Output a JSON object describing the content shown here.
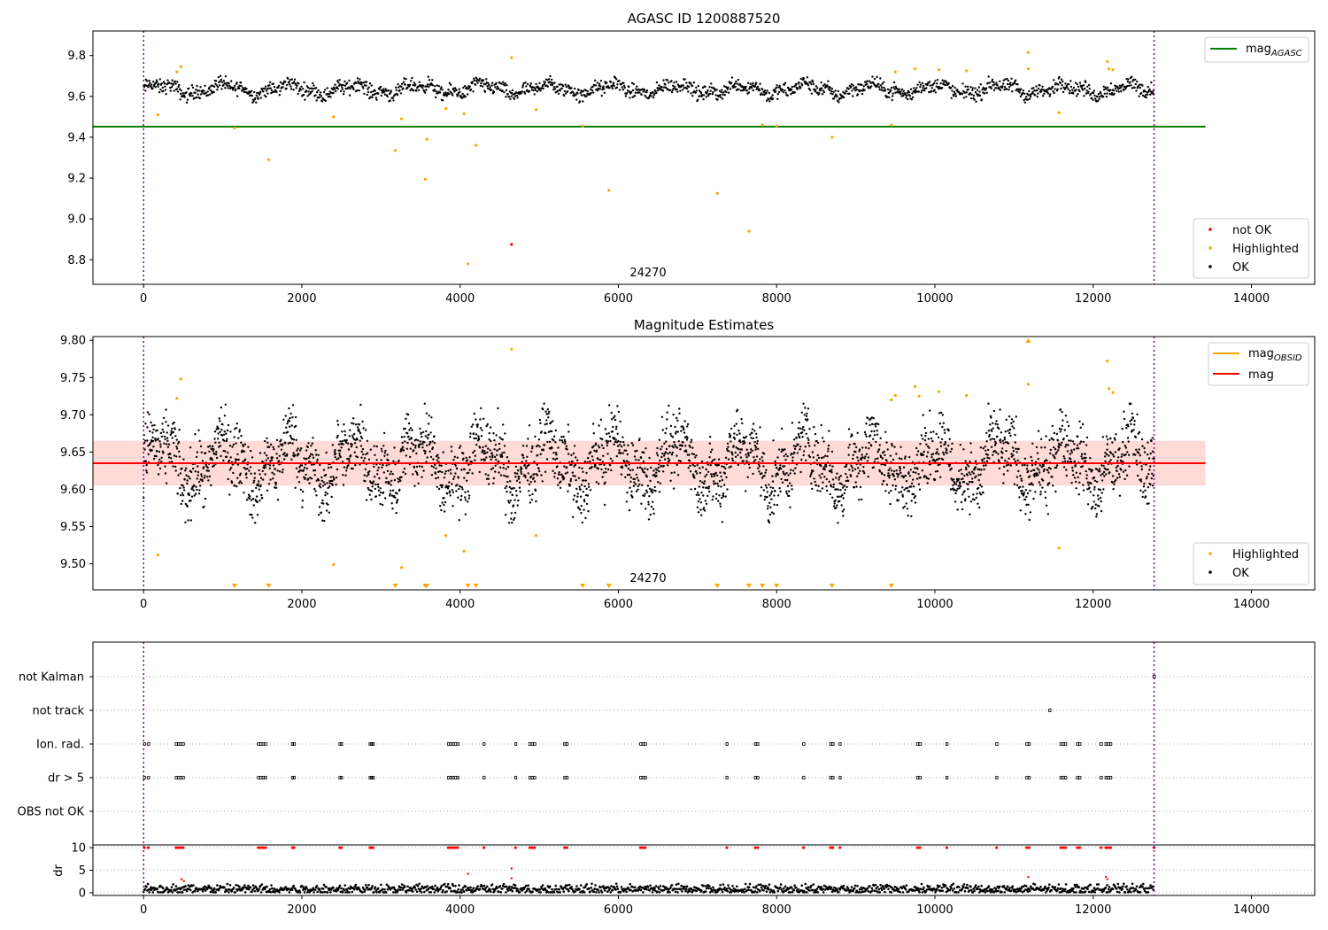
{
  "chart_data": [
    {
      "type": "scatter",
      "title": "AGASC ID 1200887520",
      "xlim": [
        -640,
        14800
      ],
      "ylim": [
        8.68,
        9.92
      ],
      "xticks": [
        0,
        2000,
        4000,
        6000,
        8000,
        10000,
        12000,
        14000
      ],
      "yticks": [
        8.8,
        9.0,
        9.2,
        9.4,
        9.6,
        9.8
      ],
      "annotation": "24270",
      "annotation_x": 6400,
      "vlines": [
        0,
        12770
      ],
      "hline": {
        "name": "mag_AGASC",
        "value": 9.452,
        "x_range": [
          -640,
          13420
        ],
        "color": "#008000"
      },
      "ok_band": {
        "x_range": [
          0,
          12770
        ],
        "center": 9.635,
        "min": 9.57,
        "max": 9.71,
        "color": "#000000"
      },
      "series": [
        {
          "name": "not OK",
          "color": "#ff0000",
          "points": [
            [
              4650,
              8.875
            ]
          ]
        },
        {
          "name": "Highlighted",
          "color": "#ffa500",
          "points": [
            [
              180,
              9.51
            ],
            [
              420,
              9.72
            ],
            [
              470,
              9.745
            ],
            [
              1150,
              9.445
            ],
            [
              1580,
              9.29
            ],
            [
              2400,
              9.5
            ],
            [
              3180,
              9.335
            ],
            [
              3260,
              9.49
            ],
            [
              3560,
              9.195
            ],
            [
              3580,
              9.39
            ],
            [
              3820,
              9.54
            ],
            [
              4050,
              9.515
            ],
            [
              4100,
              8.78
            ],
            [
              4200,
              9.36
            ],
            [
              4650,
              9.79
            ],
            [
              4960,
              9.535
            ],
            [
              5550,
              9.455
            ],
            [
              5880,
              9.14
            ],
            [
              7250,
              9.125
            ],
            [
              7650,
              8.94
            ],
            [
              7820,
              9.46
            ],
            [
              8000,
              9.455
            ],
            [
              8700,
              9.4
            ],
            [
              9450,
              9.46
            ],
            [
              9500,
              9.72
            ],
            [
              9750,
              9.735
            ],
            [
              10050,
              9.73
            ],
            [
              10400,
              9.725
            ],
            [
              11180,
              9.815
            ],
            [
              11180,
              9.735
            ],
            [
              11570,
              9.52
            ],
            [
              12180,
              9.77
            ],
            [
              12200,
              9.735
            ],
            [
              12250,
              9.73
            ]
          ]
        },
        {
          "name": "OK",
          "color": "#000000",
          "points": []
        }
      ],
      "legend_lines": [
        "mag_AGASC"
      ],
      "legend_points": [
        "not OK",
        "Highlighted",
        "OK"
      ]
    },
    {
      "type": "scatter",
      "title": "Magnitude Estimates",
      "xlim": [
        -640,
        14800
      ],
      "ylim": [
        9.465,
        9.805
      ],
      "xticks": [
        0,
        2000,
        4000,
        6000,
        8000,
        10000,
        12000,
        14000
      ],
      "yticks": [
        9.5,
        9.55,
        9.6,
        9.65,
        9.7,
        9.75,
        9.8
      ],
      "ytick_labels": [
        "9.50",
        "9.55",
        "9.60",
        "9.65",
        "9.70",
        "9.75",
        "9.80"
      ],
      "annotation": "24270",
      "annotation_x": 6400,
      "vlines": [
        0,
        12770
      ],
      "mag_line": {
        "name": "mag",
        "value": 9.635,
        "color": "#ff0000"
      },
      "mag_band": {
        "min": 9.605,
        "max": 9.665,
        "x_range": [
          -640,
          13420
        ]
      },
      "ok_band": {
        "x_range": [
          0,
          12770
        ],
        "center": 9.635,
        "min": 9.555,
        "max": 9.715,
        "color": "#000000"
      },
      "series": [
        {
          "name": "Highlighted",
          "color": "#ffa500",
          "points": [
            [
              180,
              9.512
            ],
            [
              420,
              9.722
            ],
            [
              470,
              9.748
            ],
            [
              2400,
              9.499
            ],
            [
              3260,
              9.495
            ],
            [
              3820,
              9.538
            ],
            [
              4050,
              9.517
            ],
            [
              4650,
              9.788
            ],
            [
              4960,
              9.538
            ],
            [
              9450,
              9.72
            ],
            [
              9500,
              9.726
            ],
            [
              9750,
              9.738
            ],
            [
              9800,
              9.725
            ],
            [
              10050,
              9.731
            ],
            [
              10400,
              9.726
            ],
            [
              11180,
              9.741
            ],
            [
              11570,
              9.521
            ],
            [
              12180,
              9.772
            ],
            [
              12200,
              9.735
            ],
            [
              12250,
              9.73
            ]
          ]
        },
        {
          "name": "OK",
          "color": "#000000",
          "points": []
        }
      ],
      "below_range_markers": [
        1150,
        1580,
        3180,
        3560,
        3580,
        4100,
        4200,
        5550,
        5880,
        7250,
        7650,
        7820,
        8000,
        8700,
        9450
      ],
      "above_range_markers": [
        11180
      ],
      "legend_lines": [
        "mag_OBSID",
        "mag"
      ],
      "legend_points": [
        "Highlighted",
        "OK"
      ]
    },
    {
      "type": "scatter",
      "title": "",
      "xlim": [
        -640,
        14800
      ],
      "ylabel": "dr",
      "xticks": [
        0,
        2000,
        4000,
        6000,
        8000,
        10000,
        12000,
        14000
      ],
      "categories": [
        "not Kalman",
        "not track",
        "Ion. rad.",
        "dr > 5",
        "OBS not OK"
      ],
      "vlines": [
        0,
        12770
      ],
      "flag_events": {
        "not Kalman": [
          12770
        ],
        "not track": [
          11450
        ],
        "Ion. rad.": [
          10,
          60,
          410,
          440,
          470,
          500,
          1450,
          1480,
          1510,
          1540,
          1880,
          1900,
          2480,
          2500,
          2860,
          2880,
          2900,
          3850,
          3880,
          3910,
          3940,
          3970,
          4300,
          4700,
          4880,
          4910,
          4940,
          5320,
          5350,
          6280,
          6310,
          6340,
          7370,
          7730,
          7760,
          8340,
          8680,
          8710,
          8800,
          9780,
          9810,
          10150,
          10780,
          11160,
          11190,
          11590,
          11620,
          11650,
          11800,
          11830,
          12100,
          12160,
          12190,
          12220
        ],
        "dr > 5": [
          10,
          60,
          410,
          440,
          470,
          500,
          1450,
          1480,
          1510,
          1540,
          1880,
          1900,
          2480,
          2500,
          2860,
          2880,
          2900,
          3850,
          3880,
          3910,
          3940,
          3970,
          4300,
          4700,
          4880,
          4910,
          4940,
          5320,
          5350,
          6280,
          6310,
          6340,
          7370,
          7730,
          7760,
          8340,
          8680,
          8710,
          8800,
          9780,
          9810,
          10150,
          10780,
          11160,
          11190,
          11590,
          11620,
          11650,
          11800,
          11830,
          12100,
          12160,
          12190,
          12220
        ],
        "OBS not OK": []
      },
      "dr": {
        "ylim": [
          -0.6,
          10.6
        ],
        "yticks": [
          0,
          5,
          10
        ],
        "ok_band": {
          "x_range": [
            0,
            12770
          ],
          "center": 0.8,
          "min": 0.1,
          "max": 2.0
        },
        "clipped_at_10": [
          10,
          60,
          410,
          440,
          470,
          500,
          1450,
          1480,
          1510,
          1540,
          1880,
          1900,
          2480,
          2500,
          2860,
          2880,
          2900,
          3850,
          3880,
          3910,
          3940,
          3970,
          4300,
          4700,
          4880,
          4910,
          4940,
          5320,
          5350,
          6280,
          6310,
          6340,
          7370,
          7730,
          7760,
          8340,
          8680,
          8710,
          8800,
          9780,
          9810,
          10150,
          10780,
          11160,
          11190,
          11590,
          11620,
          11650,
          11800,
          11830,
          12100,
          12160,
          12190,
          12220,
          12770
        ],
        "red_points": [
          [
            480,
            3.0
          ],
          [
            510,
            2.6
          ],
          [
            4100,
            4.2
          ],
          [
            4650,
            5.4
          ],
          [
            4650,
            3.2
          ],
          [
            11180,
            3.5
          ],
          [
            12160,
            3.5
          ],
          [
            12180,
            3.0
          ]
        ]
      }
    }
  ]
}
